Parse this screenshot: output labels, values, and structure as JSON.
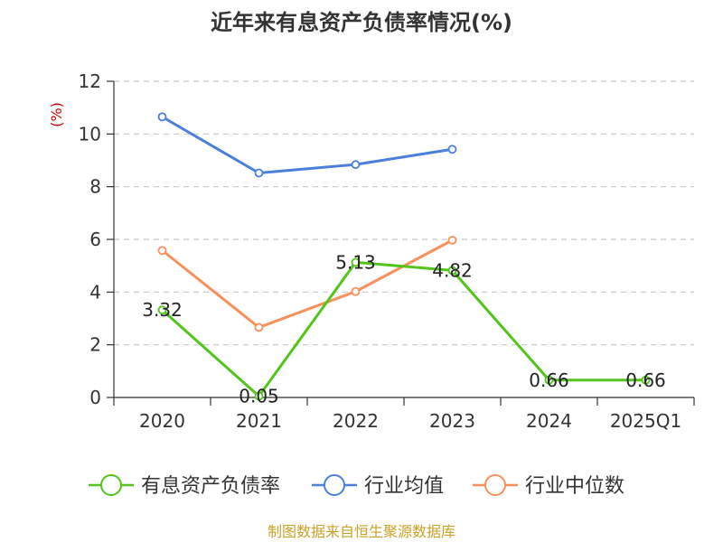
{
  "chart_data": {
    "type": "line",
    "title": "近年来有息资产负债率情况(%)",
    "ylabel": "(%)",
    "xlabel": "",
    "categories": [
      "2020",
      "2021",
      "2022",
      "2023",
      "2024",
      "2025Q1"
    ],
    "ylim": [
      0,
      12
    ],
    "yticks": [
      0,
      2,
      4,
      6,
      8,
      10,
      12
    ],
    "grid": true,
    "legend_position": "bottom",
    "series": [
      {
        "name": "有息资产负债率",
        "color": "#52c41a",
        "values": [
          3.32,
          0.05,
          5.13,
          4.82,
          0.66,
          0.66
        ],
        "labels": [
          "3.32",
          "0.05",
          "5.13",
          "4.82",
          "0.66",
          "0.66"
        ]
      },
      {
        "name": "行业均值",
        "color": "#4a7fdb",
        "values": [
          10.65,
          8.52,
          8.84,
          9.42,
          null,
          null
        ]
      },
      {
        "name": "行业中位数",
        "color": "#f7905a",
        "values": [
          5.58,
          2.66,
          4.02,
          5.97,
          null,
          null
        ]
      }
    ],
    "unit_color": "#cc0000"
  },
  "footer": {
    "source": "制图数据来自恒生聚源数据库",
    "color": "#c9a227"
  }
}
